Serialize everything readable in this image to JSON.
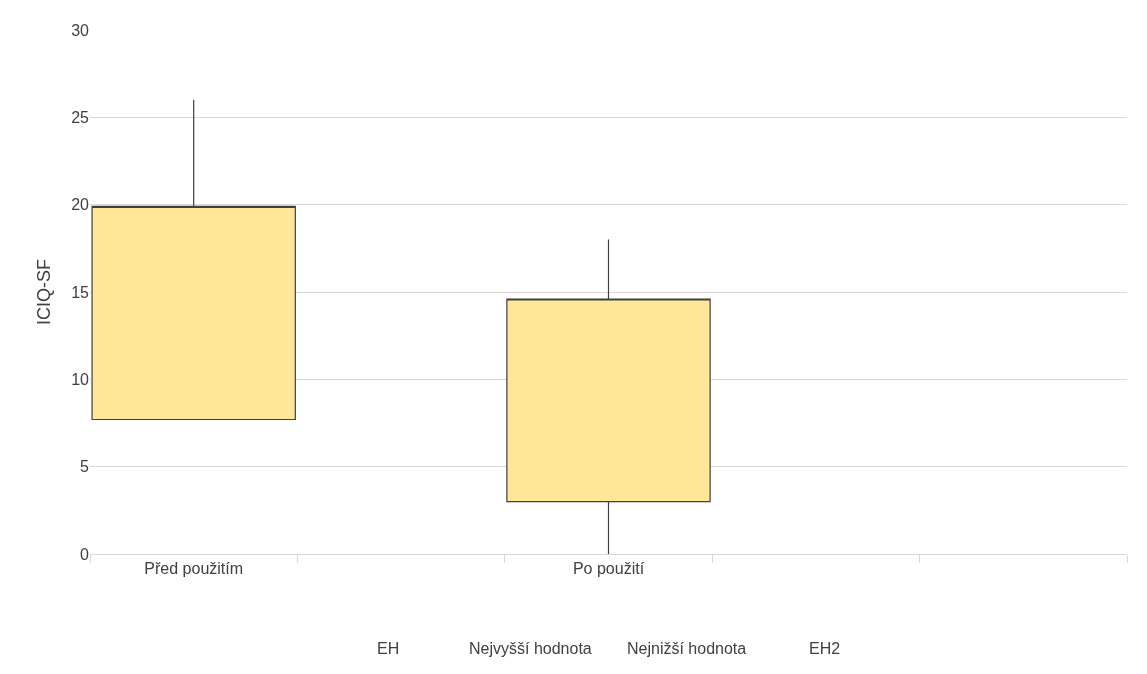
{
  "chart_data": {
    "type": "candlestick",
    "ylabel": "ICIQ-SF",
    "categories": [
      "Před použitím",
      null,
      "Po použití",
      null,
      null
    ],
    "ohlc": [
      [
        7.7,
        26,
        7.7,
        19.9
      ],
      null,
      [
        3,
        18,
        0,
        14.6
      ],
      null,
      null
    ],
    "color": "#ffe699",
    "ylim": [
      0,
      30
    ],
    "yticks": [
      0,
      5,
      10,
      15,
      20,
      25,
      30
    ],
    "grid": "y",
    "annotations": [
      "EH",
      "Nejvyšší hodnota",
      "Nejnižší hodnota",
      "EH2"
    ]
  }
}
